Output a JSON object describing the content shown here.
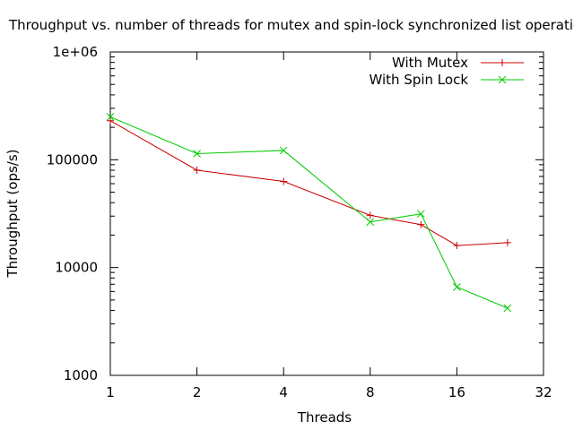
{
  "chart_data": {
    "type": "line",
    "title": "Throughput vs. number of threads for mutex and spin-lock synchronized list operations",
    "xlabel": "Threads",
    "ylabel": "Throughput (ops/s)",
    "x_scale": "log2",
    "y_scale": "log10",
    "xlim": [
      1,
      32
    ],
    "ylim": [
      1000,
      1000000
    ],
    "x_ticks": [
      1,
      2,
      4,
      8,
      16,
      32
    ],
    "x_tick_labels": [
      "1",
      "2",
      "4",
      "8",
      "16",
      "32"
    ],
    "y_ticks": [
      1000,
      10000,
      100000,
      1000000
    ],
    "y_tick_labels": [
      "1000",
      "10000",
      "100000",
      "1e+06"
    ],
    "legend_position": "top-right",
    "series": [
      {
        "name": "With Mutex",
        "color": "#cc0000",
        "marker": "plus",
        "x": [
          1,
          2,
          4,
          8,
          12,
          16,
          24
        ],
        "y": [
          230000,
          80000,
          63000,
          30500,
          25000,
          16000,
          17000
        ]
      },
      {
        "name": "With Spin Lock",
        "color": "#00cc00",
        "marker": "cross",
        "x": [
          1,
          2,
          4,
          8,
          12,
          16,
          24
        ],
        "y": [
          250000,
          114000,
          122000,
          26500,
          31500,
          6600,
          4200
        ]
      }
    ]
  }
}
